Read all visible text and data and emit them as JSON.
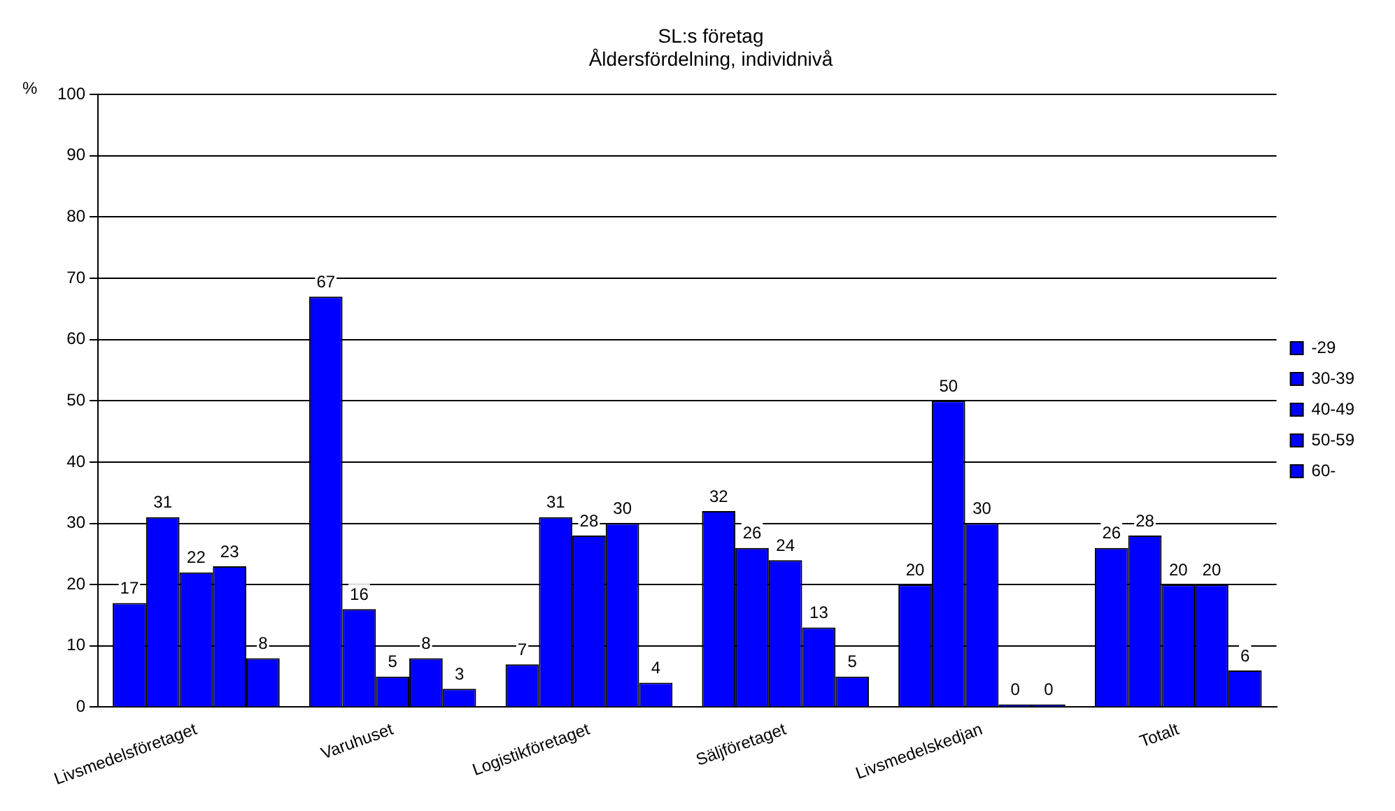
{
  "chart_data": {
    "type": "bar",
    "title": "SL:s företag",
    "subtitle": "Åldersfördelning, individnivå",
    "ylabel": "%",
    "categories": [
      "Livsmedelsföretaget",
      "Varuhuset",
      "Logistikföretaget",
      "Säljföretaget",
      "Livsmedelskedjan",
      "Totalt"
    ],
    "series": [
      {
        "name": "-29",
        "color": "#0000ff",
        "values": [
          17,
          67,
          7,
          32,
          20,
          26
        ]
      },
      {
        "name": "30-39",
        "color": "#0000ff",
        "values": [
          31,
          16,
          31,
          26,
          50,
          28
        ]
      },
      {
        "name": "40-49",
        "color": "#0000ff",
        "values": [
          22,
          5,
          28,
          24,
          30,
          20
        ]
      },
      {
        "name": "50-59",
        "color": "#0000ff",
        "values": [
          23,
          8,
          30,
          13,
          0,
          20
        ]
      },
      {
        "name": "60-",
        "color": "#0000ff",
        "values": [
          8,
          3,
          4,
          5,
          0,
          6
        ]
      }
    ],
    "ylim": [
      0,
      100
    ],
    "yticks": [
      0,
      10,
      20,
      30,
      40,
      50,
      60,
      70,
      80,
      90,
      100
    ],
    "grid": "y",
    "legend": "right",
    "data_labels": true
  }
}
